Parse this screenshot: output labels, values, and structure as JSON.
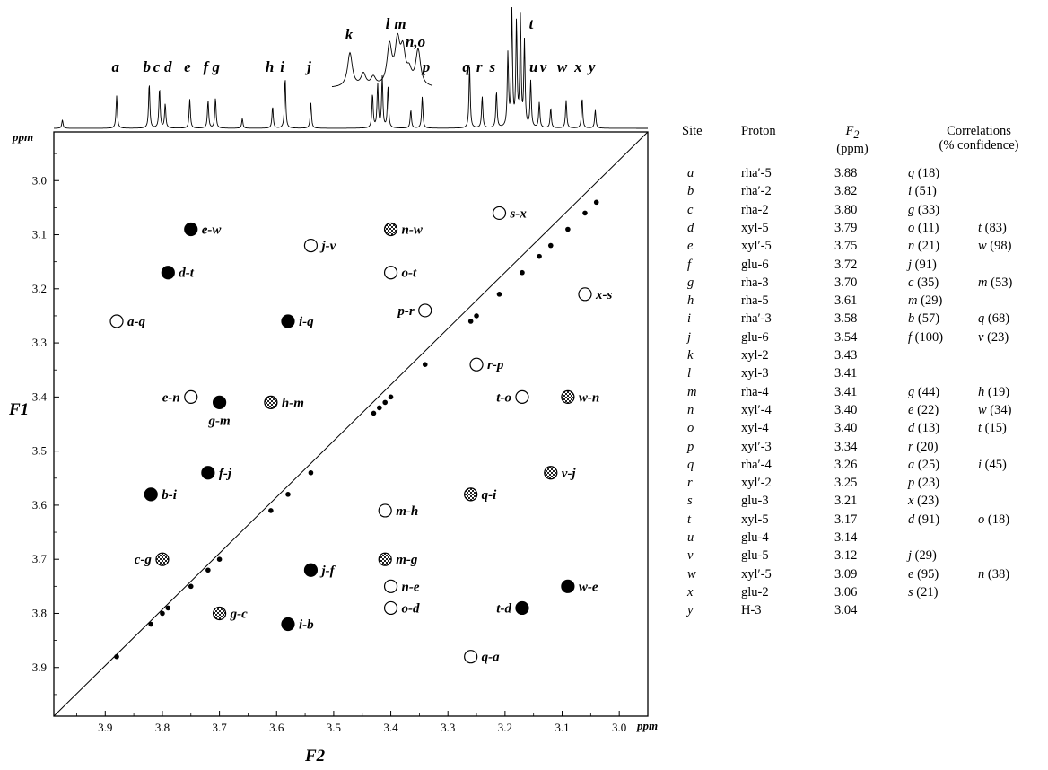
{
  "chart_data": {
    "type": "scatter",
    "xlabel": "F2",
    "ylabel": "F1",
    "unit": "ppm",
    "xlim": [
      3.99,
      2.95
    ],
    "ylim": [
      2.91,
      3.99
    ],
    "x_ticks": [
      3.9,
      3.8,
      3.7,
      3.6,
      3.5,
      3.4,
      3.3,
      3.2,
      3.1,
      3.0
    ],
    "y_ticks": [
      3.0,
      3.1,
      3.2,
      3.3,
      3.4,
      3.5,
      3.6,
      3.7,
      3.8,
      3.9
    ],
    "marker_fill_colors": {
      "solid": "#000000",
      "hatched": "#777777",
      "open": "#ffffff"
    },
    "diagonal_peaks": [
      3.88,
      3.82,
      3.8,
      3.79,
      3.75,
      3.72,
      3.7,
      3.61,
      3.58,
      3.54,
      3.43,
      3.42,
      3.41,
      3.4,
      3.34,
      3.26,
      3.25,
      3.21,
      3.17,
      3.14,
      3.12,
      3.09,
      3.06,
      3.04
    ],
    "cross_peaks": [
      {
        "label": "s-x",
        "x": 3.21,
        "y": 3.06,
        "style": "open",
        "side": "right"
      },
      {
        "label": "e-w",
        "x": 3.75,
        "y": 3.09,
        "style": "solid",
        "side": "right"
      },
      {
        "label": "n-w",
        "x": 3.4,
        "y": 3.09,
        "style": "hatched",
        "side": "right"
      },
      {
        "label": "j-v",
        "x": 3.54,
        "y": 3.12,
        "style": "open",
        "side": "right"
      },
      {
        "label": "d-t",
        "x": 3.79,
        "y": 3.17,
        "style": "solid",
        "side": "right"
      },
      {
        "label": "o-t",
        "x": 3.4,
        "y": 3.17,
        "style": "open",
        "side": "right"
      },
      {
        "label": "x-s",
        "x": 3.06,
        "y": 3.21,
        "style": "open",
        "side": "right"
      },
      {
        "label": "p-r",
        "x": 3.34,
        "y": 3.24,
        "style": "open",
        "side": "left"
      },
      {
        "label": "a-q",
        "x": 3.88,
        "y": 3.26,
        "style": "open",
        "side": "right"
      },
      {
        "label": "i-q",
        "x": 3.58,
        "y": 3.26,
        "style": "solid",
        "side": "right"
      },
      {
        "label": "r-p",
        "x": 3.25,
        "y": 3.34,
        "style": "open",
        "side": "right"
      },
      {
        "label": "e-n",
        "x": 3.75,
        "y": 3.4,
        "style": "open",
        "side": "left"
      },
      {
        "label": "t-o",
        "x": 3.17,
        "y": 3.4,
        "style": "open",
        "side": "left"
      },
      {
        "label": "w-n",
        "x": 3.09,
        "y": 3.4,
        "style": "hatched",
        "side": "right"
      },
      {
        "label": "g-m",
        "x": 3.7,
        "y": 3.41,
        "style": "solid",
        "side": "below"
      },
      {
        "label": "h-m",
        "x": 3.61,
        "y": 3.41,
        "style": "hatched",
        "side": "right"
      },
      {
        "label": "f-j",
        "x": 3.72,
        "y": 3.54,
        "style": "solid",
        "side": "right"
      },
      {
        "label": "v-j",
        "x": 3.12,
        "y": 3.54,
        "style": "hatched",
        "side": "right"
      },
      {
        "label": "b-i",
        "x": 3.82,
        "y": 3.58,
        "style": "solid",
        "side": "right"
      },
      {
        "label": "q-i",
        "x": 3.26,
        "y": 3.58,
        "style": "hatched",
        "side": "right"
      },
      {
        "label": "m-h",
        "x": 3.41,
        "y": 3.61,
        "style": "open",
        "side": "right"
      },
      {
        "label": "c-g",
        "x": 3.8,
        "y": 3.7,
        "style": "hatched",
        "side": "left"
      },
      {
        "label": "m-g",
        "x": 3.41,
        "y": 3.7,
        "style": "hatched",
        "side": "right"
      },
      {
        "label": "j-f",
        "x": 3.54,
        "y": 3.72,
        "style": "solid",
        "side": "right"
      },
      {
        "label": "n-e",
        "x": 3.4,
        "y": 3.75,
        "style": "open",
        "side": "right"
      },
      {
        "label": "w-e",
        "x": 3.09,
        "y": 3.75,
        "style": "solid",
        "side": "right"
      },
      {
        "label": "o-d",
        "x": 3.4,
        "y": 3.79,
        "style": "open",
        "side": "right"
      },
      {
        "label": "t-d",
        "x": 3.17,
        "y": 3.79,
        "style": "solid",
        "side": "left"
      },
      {
        "label": "g-c",
        "x": 3.7,
        "y": 3.8,
        "style": "hatched",
        "side": "right"
      },
      {
        "label": "i-b",
        "x": 3.58,
        "y": 3.82,
        "style": "solid",
        "side": "right"
      },
      {
        "label": "q-a",
        "x": 3.26,
        "y": 3.88,
        "style": "open",
        "side": "right"
      }
    ],
    "spectrum_1d": {
      "peaks": [
        {
          "x": 3.975,
          "h": 0.07
        },
        {
          "x": 3.88,
          "h": 0.27
        },
        {
          "x": 3.823,
          "h": 0.37
        },
        {
          "x": 3.805,
          "h": 0.33
        },
        {
          "x": 3.795,
          "h": 0.2
        },
        {
          "x": 3.752,
          "h": 0.24
        },
        {
          "x": 3.72,
          "h": 0.23
        },
        {
          "x": 3.707,
          "h": 0.25
        },
        {
          "x": 3.66,
          "h": 0.08
        },
        {
          "x": 3.607,
          "h": 0.18
        },
        {
          "x": 3.585,
          "h": 0.42
        },
        {
          "x": 3.54,
          "h": 0.21
        },
        {
          "x": 3.432,
          "h": 0.28
        },
        {
          "x": 3.423,
          "h": 0.36
        },
        {
          "x": 3.415,
          "h": 0.42
        },
        {
          "x": 3.405,
          "h": 0.34
        },
        {
          "x": 3.365,
          "h": 0.15
        },
        {
          "x": 3.345,
          "h": 0.26
        },
        {
          "x": 3.262,
          "h": 0.51
        },
        {
          "x": 3.24,
          "h": 0.26
        },
        {
          "x": 3.215,
          "h": 0.3
        },
        {
          "x": 3.195,
          "h": 0.6
        },
        {
          "x": 3.188,
          "h": 0.95
        },
        {
          "x": 3.18,
          "h": 0.85
        },
        {
          "x": 3.173,
          "h": 0.9
        },
        {
          "x": 3.166,
          "h": 0.7
        },
        {
          "x": 3.155,
          "h": 0.38
        },
        {
          "x": 3.14,
          "h": 0.21
        },
        {
          "x": 3.12,
          "h": 0.16
        },
        {
          "x": 3.093,
          "h": 0.23
        },
        {
          "x": 3.065,
          "h": 0.25
        },
        {
          "x": 3.042,
          "h": 0.15
        }
      ],
      "peak_labels": [
        {
          "label": "a",
          "x": 3.882
        },
        {
          "label": "b",
          "x": 3.827
        },
        {
          "label": "c",
          "x": 3.81
        },
        {
          "label": "d",
          "x": 3.79
        },
        {
          "label": "e",
          "x": 3.756
        },
        {
          "label": "f",
          "x": 3.724
        },
        {
          "label": "g",
          "x": 3.706
        },
        {
          "label": "h",
          "x": 3.612
        },
        {
          "label": "i",
          "x": 3.59
        },
        {
          "label": "j",
          "x": 3.543
        },
        {
          "label": "p",
          "x": 3.338
        },
        {
          "label": "q",
          "x": 3.268
        },
        {
          "label": "r",
          "x": 3.245
        },
        {
          "label": "s",
          "x": 3.222
        },
        {
          "label": "u",
          "x": 3.15
        },
        {
          "label": "v",
          "x": 3.133
        },
        {
          "label": "w",
          "x": 3.1
        },
        {
          "label": "x",
          "x": 3.072
        },
        {
          "label": "y",
          "x": 3.048
        },
        {
          "label": "t",
          "x": 3.158
        }
      ],
      "inset_labels": [
        "k",
        "l",
        "m",
        "n,o"
      ]
    }
  },
  "table": {
    "headers": {
      "site": "Site",
      "proton": "Proton",
      "f2_main": "F",
      "f2_sub": "2",
      "f2_unit": "(ppm)",
      "corr_line1": "Correlations",
      "corr_line2": "(% confidence)"
    },
    "rows": [
      {
        "site": "a",
        "proton": "rha′-5",
        "shift": "3.88",
        "c1": [
          "q",
          "(18)"
        ],
        "c2": [
          "",
          ""
        ]
      },
      {
        "site": "b",
        "proton": "rha′-2",
        "shift": "3.82",
        "c1": [
          "i",
          "(51)"
        ],
        "c2": [
          "",
          ""
        ]
      },
      {
        "site": "c",
        "proton": "rha-2",
        "shift": "3.80",
        "c1": [
          "g",
          "(33)"
        ],
        "c2": [
          "",
          ""
        ]
      },
      {
        "site": "d",
        "proton": "xyl-5",
        "shift": "3.79",
        "c1": [
          "o",
          "(11)"
        ],
        "c2": [
          "t",
          "(83)"
        ]
      },
      {
        "site": "e",
        "proton": "xyl′-5",
        "shift": "3.75",
        "c1": [
          "n",
          "(21)"
        ],
        "c2": [
          "w",
          "(98)"
        ]
      },
      {
        "site": "f",
        "proton": "glu-6",
        "shift": "3.72",
        "c1": [
          "j",
          "(91)"
        ],
        "c2": [
          "",
          ""
        ]
      },
      {
        "site": "g",
        "proton": "rha-3",
        "shift": "3.70",
        "c1": [
          "c",
          "(35)"
        ],
        "c2": [
          "m",
          "(53)"
        ]
      },
      {
        "site": "h",
        "proton": "rha-5",
        "shift": "3.61",
        "c1": [
          "m",
          "(29)"
        ],
        "c2": [
          "",
          ""
        ]
      },
      {
        "site": "i",
        "proton": "rha′-3",
        "shift": "3.58",
        "c1": [
          "b",
          "(57)"
        ],
        "c2": [
          "q",
          "(68)"
        ]
      },
      {
        "site": "j",
        "proton": "glu-6",
        "shift": "3.54",
        "c1": [
          "f",
          "(100)"
        ],
        "c2": [
          "v",
          "(23)"
        ]
      },
      {
        "site": "k",
        "proton": "xyl-2",
        "shift": "3.43",
        "c1": [
          "",
          ""
        ],
        "c2": [
          "",
          ""
        ]
      },
      {
        "site": "l",
        "proton": "xyl-3",
        "shift": "3.41",
        "c1": [
          "",
          ""
        ],
        "c2": [
          "",
          ""
        ]
      },
      {
        "site": "m",
        "proton": "rha-4",
        "shift": "3.41",
        "c1": [
          "g",
          "(44)"
        ],
        "c2": [
          "h",
          "(19)"
        ]
      },
      {
        "site": "n",
        "proton": "xyl′-4",
        "shift": "3.40",
        "c1": [
          "e",
          "(22)"
        ],
        "c2": [
          "w",
          "(34)"
        ]
      },
      {
        "site": "o",
        "proton": "xyl-4",
        "shift": "3.40",
        "c1": [
          "d",
          "(13)"
        ],
        "c2": [
          "t",
          "(15)"
        ]
      },
      {
        "site": "p",
        "proton": "xyl′-3",
        "shift": "3.34",
        "c1": [
          "r",
          "(20)"
        ],
        "c2": [
          "",
          ""
        ]
      },
      {
        "site": "q",
        "proton": "rha′-4",
        "shift": "3.26",
        "c1": [
          "a",
          "(25)"
        ],
        "c2": [
          "i",
          "(45)"
        ]
      },
      {
        "site": "r",
        "proton": "xyl′-2",
        "shift": "3.25",
        "c1": [
          "p",
          "(23)"
        ],
        "c2": [
          "",
          ""
        ]
      },
      {
        "site": "s",
        "proton": "glu-3",
        "shift": "3.21",
        "c1": [
          "x",
          "(23)"
        ],
        "c2": [
          "",
          ""
        ]
      },
      {
        "site": "t",
        "proton": "xyl-5",
        "shift": "3.17",
        "c1": [
          "d",
          "(91)"
        ],
        "c2": [
          "o",
          "(18)"
        ]
      },
      {
        "site": "u",
        "proton": "glu-4",
        "shift": "3.14",
        "c1": [
          "",
          ""
        ],
        "c2": [
          "",
          ""
        ]
      },
      {
        "site": "v",
        "proton": "glu-5",
        "shift": "3.12",
        "c1": [
          "j",
          "(29)"
        ],
        "c2": [
          "",
          ""
        ]
      },
      {
        "site": "w",
        "proton": "xyl′-5",
        "shift": "3.09",
        "c1": [
          "e",
          "(95)"
        ],
        "c2": [
          "n",
          "(38)"
        ]
      },
      {
        "site": "x",
        "proton": "glu-2",
        "shift": "3.06",
        "c1": [
          "s",
          "(21)"
        ],
        "c2": [
          "",
          ""
        ]
      },
      {
        "site": "y",
        "proton": "H-3",
        "shift": "3.04",
        "c1": [
          "",
          ""
        ],
        "c2": [
          "",
          ""
        ]
      }
    ]
  }
}
